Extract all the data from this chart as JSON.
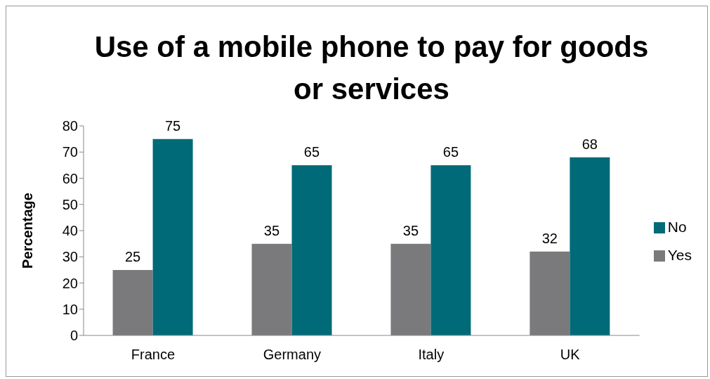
{
  "chart_data": {
    "type": "bar",
    "title": "Use of a mobile phone to pay for goods or services",
    "ylabel": "Percentage",
    "categories": [
      "France",
      "Germany",
      "Italy",
      "UK"
    ],
    "series": [
      {
        "name": "Yes",
        "color": "#7a7a7c",
        "values": [
          25,
          35,
          35,
          32
        ]
      },
      {
        "name": "No",
        "color": "#006a78",
        "values": [
          75,
          65,
          65,
          68
        ]
      }
    ],
    "ylim": [
      0,
      80
    ],
    "yticks": [
      0,
      10,
      20,
      30,
      40,
      50,
      60,
      70,
      80
    ],
    "grid": false,
    "legend": "right",
    "data_labels": true
  }
}
